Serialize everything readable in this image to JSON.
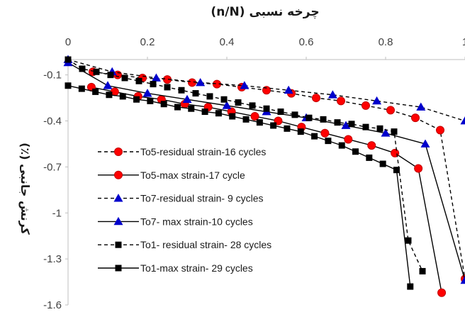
{
  "chart_data": {
    "type": "line",
    "title": "چرخه نسبی (n/N)",
    "xlabel": "",
    "ylabel": "کرنش جانبی (٪)",
    "xlim": [
      0,
      1
    ],
    "ylim": [
      -1.6,
      0
    ],
    "x_ticks": [
      "0",
      "0.2",
      "0.4",
      "0.6",
      "0.8",
      "1"
    ],
    "y_ticks": [
      "-0.1",
      "-0.4",
      "-0.7",
      "-1",
      "-1.3",
      "-1.6"
    ],
    "x_axis_position": "top",
    "grid": false,
    "legend_position": "left-middle",
    "series": [
      {
        "name": "To5-residual strain-16 cycles",
        "color": "#ff0000",
        "marker": "circle",
        "line": "dashed",
        "x": [
          0.0625,
          0.125,
          0.1875,
          0.25,
          0.3125,
          0.375,
          0.4375,
          0.5,
          0.5625,
          0.625,
          0.6875,
          0.75,
          0.8125,
          0.875,
          0.9375,
          1.0
        ],
        "y": [
          -0.08,
          -0.1,
          -0.12,
          -0.13,
          -0.15,
          -0.16,
          -0.18,
          -0.2,
          -0.22,
          -0.25,
          -0.27,
          -0.3,
          -0.33,
          -0.38,
          -0.46,
          -1.43
        ]
      },
      {
        "name": "To5-max strain-17 cycle",
        "color": "#ff0000",
        "marker": "circle",
        "line": "solid",
        "x": [
          0.0588,
          0.1176,
          0.1765,
          0.2353,
          0.2941,
          0.3529,
          0.4118,
          0.4706,
          0.5294,
          0.5882,
          0.6471,
          0.7059,
          0.7647,
          0.8235,
          0.8824,
          0.9412
        ],
        "y": [
          -0.18,
          -0.21,
          -0.24,
          -0.26,
          -0.29,
          -0.31,
          -0.34,
          -0.37,
          -0.4,
          -0.44,
          -0.48,
          -0.52,
          -0.56,
          -0.61,
          -0.71,
          -1.52
        ]
      },
      {
        "name": "To7-residual strain- 9 cycles",
        "color": "#0000cc",
        "marker": "triangle",
        "line": "dashed",
        "x": [
          0.0,
          0.1111,
          0.2222,
          0.3333,
          0.4444,
          0.5556,
          0.6667,
          0.7778,
          0.8889,
          1.0
        ],
        "y": [
          0.0,
          -0.08,
          -0.12,
          -0.15,
          -0.17,
          -0.2,
          -0.23,
          -0.27,
          -0.31,
          -0.4
        ]
      },
      {
        "name": "To7- max strain-10 cycles",
        "color": "#0000cc",
        "marker": "triangle",
        "line": "solid",
        "x": [
          0.0,
          0.1,
          0.2,
          0.3,
          0.4,
          0.5,
          0.6,
          0.7,
          0.8,
          0.9,
          1.0
        ],
        "y": [
          -0.02,
          -0.17,
          -0.22,
          -0.26,
          -0.3,
          -0.34,
          -0.38,
          -0.43,
          -0.48,
          -0.55,
          -1.44
        ]
      },
      {
        "name": "To1- residual strain- 28 cycles",
        "color": "#000000",
        "marker": "square",
        "line": "dashed",
        "x": [
          0.0,
          0.0357,
          0.0714,
          0.1071,
          0.1429,
          0.1786,
          0.2143,
          0.25,
          0.2857,
          0.3214,
          0.3571,
          0.3929,
          0.4286,
          0.4643,
          0.5,
          0.5357,
          0.5714,
          0.6071,
          0.6429,
          0.6786,
          0.7143,
          0.75,
          0.7857,
          0.8214,
          0.8571,
          0.8929
        ],
        "y": [
          0.0,
          -0.06,
          -0.08,
          -0.1,
          -0.12,
          -0.14,
          -0.16,
          -0.18,
          -0.2,
          -0.22,
          -0.24,
          -0.26,
          -0.28,
          -0.3,
          -0.32,
          -0.34,
          -0.36,
          -0.38,
          -0.39,
          -0.41,
          -0.42,
          -0.44,
          -0.45,
          -0.47,
          -1.18,
          -1.38
        ]
      },
      {
        "name": "To1-max strain- 29 cycles",
        "color": "#000000",
        "marker": "square",
        "line": "solid",
        "x": [
          0.0,
          0.0345,
          0.069,
          0.1034,
          0.1379,
          0.1724,
          0.2069,
          0.2414,
          0.2759,
          0.3103,
          0.3448,
          0.3793,
          0.4138,
          0.4483,
          0.4828,
          0.5172,
          0.5517,
          0.5862,
          0.6207,
          0.6552,
          0.6897,
          0.7241,
          0.7586,
          0.7931,
          0.8276,
          0.8621
        ],
        "y": [
          -0.17,
          -0.19,
          -0.21,
          -0.23,
          -0.24,
          -0.26,
          -0.27,
          -0.29,
          -0.31,
          -0.32,
          -0.34,
          -0.35,
          -0.37,
          -0.39,
          -0.41,
          -0.43,
          -0.45,
          -0.47,
          -0.5,
          -0.53,
          -0.56,
          -0.6,
          -0.64,
          -0.68,
          -0.72,
          -1.48
        ]
      }
    ]
  }
}
